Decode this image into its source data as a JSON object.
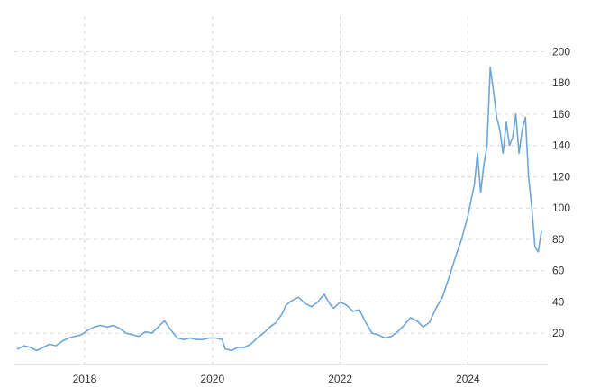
{
  "chart_data": {
    "type": "line",
    "title": "",
    "xlabel": "",
    "ylabel": "",
    "xlim": [
      2016.9,
      2025.25
    ],
    "ylim": [
      0,
      210
    ],
    "y_ticks": [
      20,
      40,
      60,
      80,
      100,
      120,
      140,
      160,
      180,
      200
    ],
    "x_ticks": [
      {
        "value": 2018,
        "label": "2018"
      },
      {
        "value": 2020,
        "label": "2020"
      },
      {
        "value": 2022,
        "label": "2022"
      },
      {
        "value": 2024,
        "label": "2024"
      }
    ],
    "grid": true,
    "legend": "none",
    "y_axis_position": "right",
    "colors": {
      "line": "#6fa6d8",
      "grid": "#d9d9d9",
      "text": "#333333"
    },
    "series": [
      {
        "x": [
          2016.95,
          2017.05,
          2017.15,
          2017.25,
          2017.35,
          2017.45,
          2017.55,
          2017.65,
          2017.75,
          2017.85,
          2017.95,
          2018.05,
          2018.15,
          2018.25,
          2018.35,
          2018.45,
          2018.55,
          2018.65,
          2018.75,
          2018.85,
          2018.95,
          2019.05,
          2019.15,
          2019.25,
          2019.35,
          2019.45,
          2019.55,
          2019.65,
          2019.75,
          2019.85,
          2019.95,
          2020.05,
          2020.15,
          2020.2,
          2020.3,
          2020.4,
          2020.5,
          2020.6,
          2020.7,
          2020.8,
          2020.9,
          2021.0,
          2021.1,
          2021.15,
          2021.25,
          2021.35,
          2021.45,
          2021.55,
          2021.65,
          2021.75,
          2021.85,
          2021.9,
          2022.0,
          2022.1,
          2022.2,
          2022.3,
          2022.4,
          2022.5,
          2022.6,
          2022.7,
          2022.8,
          2022.9,
          2023.0,
          2023.1,
          2023.2,
          2023.3,
          2023.4,
          2023.5,
          2023.6,
          2023.7,
          2023.8,
          2023.9,
          2024.0,
          2024.05,
          2024.1,
          2024.15,
          2024.2,
          2024.25,
          2024.3,
          2024.35,
          2024.4,
          2024.45,
          2024.5,
          2024.55,
          2024.6,
          2024.65,
          2024.7,
          2024.75,
          2024.8,
          2024.85,
          2024.9,
          2024.95,
          2025.0,
          2025.05,
          2025.1,
          2025.15
        ],
        "y": [
          10,
          12,
          11,
          9,
          11,
          13,
          12,
          15,
          17,
          18,
          19,
          22,
          24,
          25,
          24,
          25,
          23,
          20,
          19,
          18,
          21,
          20,
          24,
          28,
          22,
          17,
          16,
          17,
          16,
          16,
          17,
          17,
          16,
          10,
          9,
          11,
          11,
          13,
          17,
          20,
          24,
          27,
          33,
          38,
          41,
          43,
          39,
          37,
          40,
          45,
          38,
          36,
          40,
          38,
          34,
          35,
          27,
          20,
          19,
          17,
          18,
          21,
          25,
          30,
          28,
          24,
          27,
          36,
          43,
          55,
          68,
          80,
          95,
          105,
          115,
          135,
          110,
          128,
          140,
          190,
          175,
          158,
          150,
          135,
          155,
          140,
          145,
          160,
          135,
          150,
          158,
          120,
          100,
          75,
          72,
          85
        ]
      }
    ]
  }
}
